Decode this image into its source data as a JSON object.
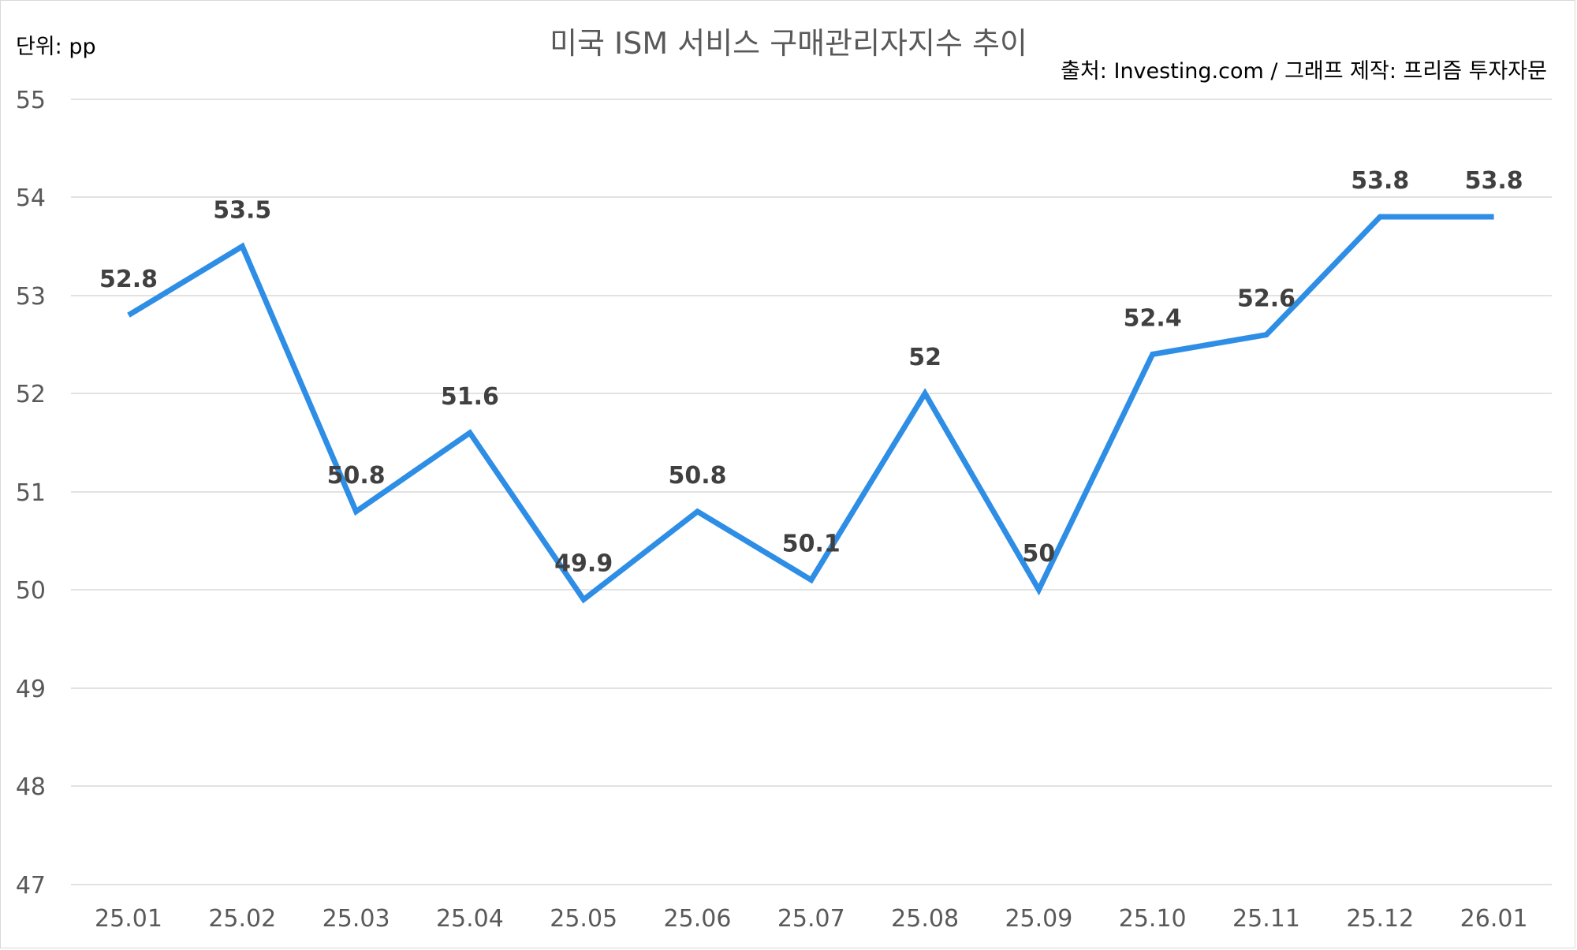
{
  "chart_data": {
    "type": "line",
    "title": "미국 ISM 서비스 구매관리자지수 추이",
    "unit_label": "단위: pp",
    "source_note": "출처: Investing.com / 그래프 제작: 프리즘 투자자문",
    "categories": [
      "25.01",
      "25.02",
      "25.03",
      "25.04",
      "25.05",
      "25.06",
      "25.07",
      "25.08",
      "25.09",
      "25.10",
      "25.11",
      "25.12",
      "26.01"
    ],
    "series": [
      {
        "values": [
          52.8,
          53.5,
          50.8,
          51.6,
          49.9,
          50.8,
          50.1,
          52,
          50,
          52.4,
          52.6,
          53.8,
          53.8
        ],
        "labels": [
          "52.8",
          "53.5",
          "50.8",
          "51.6",
          "49.9",
          "50.8",
          "50.1",
          "52",
          "50",
          "52.4",
          "52.6",
          "53.8",
          "53.8"
        ],
        "color": "#2e8ee6"
      }
    ],
    "yticks": [
      "47",
      "48",
      "49",
      "50",
      "51",
      "52",
      "53",
      "54",
      "55"
    ],
    "ylim": [
      47,
      55
    ],
    "grid": true,
    "legend": "none"
  }
}
